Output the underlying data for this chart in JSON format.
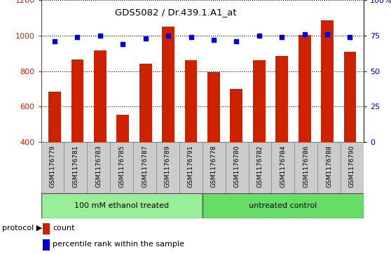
{
  "title": "GDS5082 / Dr.439.1.A1_at",
  "samples": [
    "GSM1176779",
    "GSM1176781",
    "GSM1176783",
    "GSM1176785",
    "GSM1176787",
    "GSM1176789",
    "GSM1176791",
    "GSM1176778",
    "GSM1176780",
    "GSM1176782",
    "GSM1176784",
    "GSM1176786",
    "GSM1176788",
    "GSM1176790"
  ],
  "counts": [
    685,
    865,
    915,
    555,
    840,
    1050,
    860,
    795,
    700,
    860,
    885,
    1005,
    1085,
    910
  ],
  "percentiles": [
    71,
    74,
    75,
    69,
    73,
    75,
    74,
    72,
    71,
    75,
    74,
    76,
    76,
    74
  ],
  "group1_label": "100 mM ethanol treated",
  "group2_label": "untreated control",
  "group1_count": 7,
  "group2_count": 7,
  "ylim_left": [
    400,
    1200
  ],
  "ylim_right": [
    0,
    100
  ],
  "yticks_left": [
    400,
    600,
    800,
    1000,
    1200
  ],
  "yticks_right": [
    0,
    25,
    50,
    75,
    100
  ],
  "ytick_labels_right": [
    "0",
    "25",
    "50",
    "75",
    "100%"
  ],
  "bar_color": "#cc2200",
  "dot_color": "#0000cc",
  "group1_color": "#99ee99",
  "group2_color": "#66dd66",
  "tick_area_color": "#cccccc",
  "legend_count_label": "count",
  "legend_pct_label": "percentile rank within the sample",
  "protocol_label": "protocol",
  "bg_color": "#ffffff"
}
